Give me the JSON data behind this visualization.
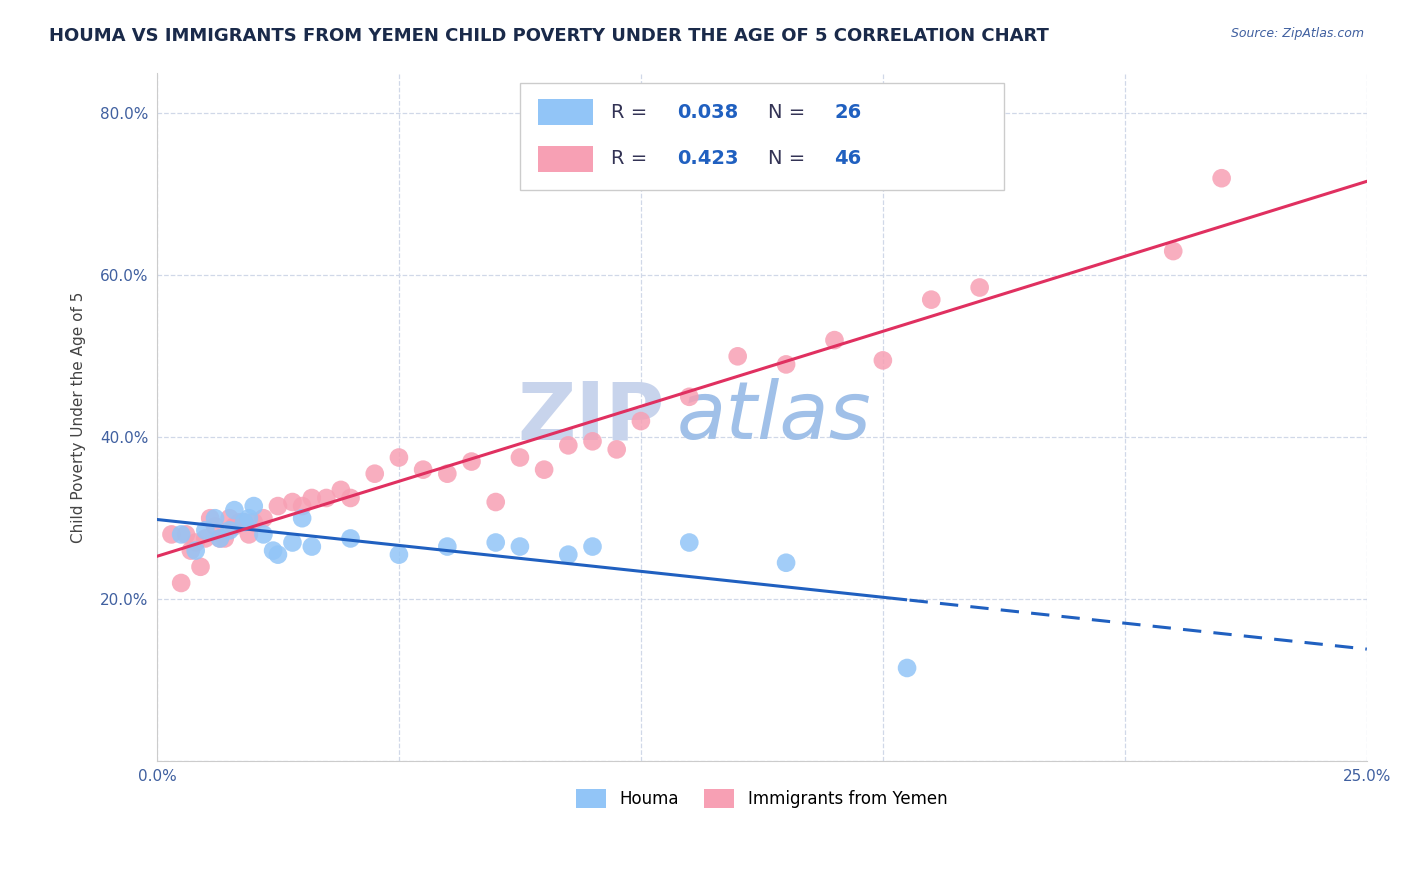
{
  "title": "HOUMA VS IMMIGRANTS FROM YEMEN CHILD POVERTY UNDER THE AGE OF 5 CORRELATION CHART",
  "source_text": "Source: ZipAtlas.com",
  "ylabel": "Child Poverty Under the Age of 5",
  "x_min": 0.0,
  "x_max": 0.25,
  "y_min": 0.0,
  "y_max": 0.85,
  "x_ticks": [
    0.0,
    0.05,
    0.1,
    0.15,
    0.2,
    0.25
  ],
  "x_tick_labels": [
    "0.0%",
    "",
    "",
    "",
    "",
    "25.0%"
  ],
  "y_ticks": [
    0.0,
    0.2,
    0.4,
    0.6,
    0.8
  ],
  "y_tick_labels": [
    "",
    "20.0%",
    "40.0%",
    "60.0%",
    "80.0%"
  ],
  "houma_R": 0.038,
  "houma_N": 26,
  "yemen_R": 0.423,
  "yemen_N": 46,
  "houma_color": "#92C5F7",
  "yemen_color": "#F7A0B4",
  "houma_line_color": "#2060C0",
  "yemen_line_color": "#E03060",
  "legend_text_color": "#2060C0",
  "watermark_zip": "ZIP",
  "watermark_atlas": "atlas",
  "watermark_zip_color": "#C8D4EC",
  "watermark_atlas_color": "#A0C0E8",
  "grid_color": "#D0D8E8",
  "houma_x": [
    0.005,
    0.008,
    0.01,
    0.012,
    0.013,
    0.015,
    0.016,
    0.018,
    0.019,
    0.02,
    0.022,
    0.024,
    0.025,
    0.028,
    0.03,
    0.032,
    0.04,
    0.05,
    0.06,
    0.07,
    0.075,
    0.085,
    0.09,
    0.11,
    0.13,
    0.155
  ],
  "houma_y": [
    0.28,
    0.26,
    0.285,
    0.3,
    0.275,
    0.285,
    0.31,
    0.295,
    0.3,
    0.315,
    0.28,
    0.26,
    0.255,
    0.27,
    0.3,
    0.265,
    0.275,
    0.255,
    0.265,
    0.27,
    0.265,
    0.255,
    0.265,
    0.27,
    0.245,
    0.115
  ],
  "yemen_x": [
    0.003,
    0.005,
    0.006,
    0.007,
    0.008,
    0.009,
    0.01,
    0.011,
    0.012,
    0.013,
    0.014,
    0.015,
    0.016,
    0.017,
    0.018,
    0.019,
    0.02,
    0.022,
    0.025,
    0.028,
    0.03,
    0.032,
    0.035,
    0.038,
    0.04,
    0.045,
    0.05,
    0.055,
    0.06,
    0.065,
    0.07,
    0.075,
    0.08,
    0.085,
    0.09,
    0.095,
    0.1,
    0.11,
    0.12,
    0.13,
    0.14,
    0.15,
    0.16,
    0.17,
    0.21,
    0.22
  ],
  "yemen_y": [
    0.28,
    0.22,
    0.28,
    0.26,
    0.27,
    0.24,
    0.275,
    0.3,
    0.29,
    0.275,
    0.275,
    0.3,
    0.29,
    0.295,
    0.295,
    0.28,
    0.295,
    0.3,
    0.315,
    0.32,
    0.315,
    0.325,
    0.325,
    0.335,
    0.325,
    0.355,
    0.375,
    0.36,
    0.355,
    0.37,
    0.32,
    0.375,
    0.36,
    0.39,
    0.395,
    0.385,
    0.42,
    0.45,
    0.5,
    0.49,
    0.52,
    0.495,
    0.57,
    0.585,
    0.63,
    0.72
  ]
}
